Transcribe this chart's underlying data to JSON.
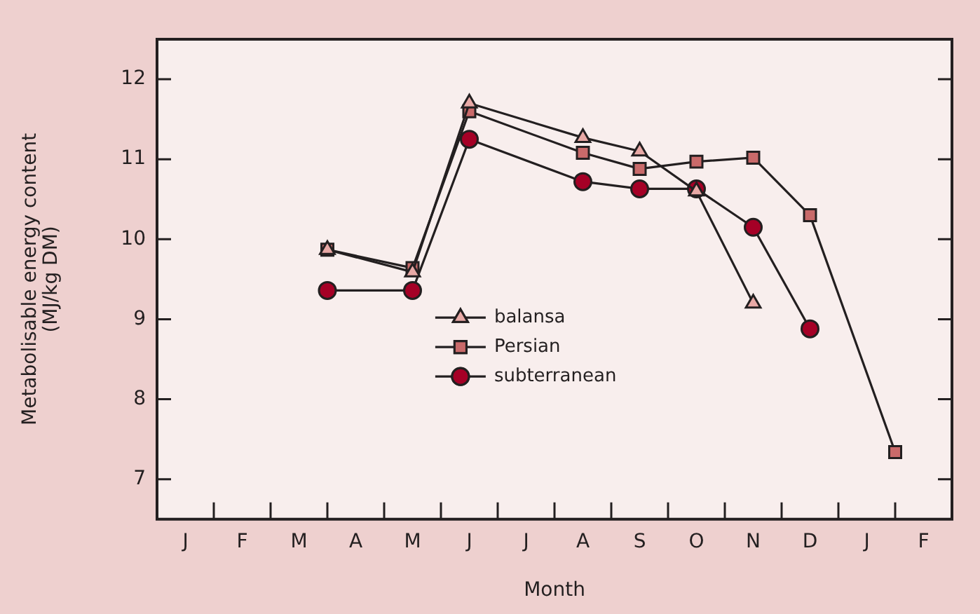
{
  "chart_data": {
    "type": "line",
    "xlabel": "Month",
    "ylabel": "Metabolisable energy content\n(MJ/kg DM)",
    "categories": [
      null,
      "J",
      null,
      "F",
      null,
      "M",
      null,
      "A",
      null,
      "M",
      null,
      "J",
      null,
      "J",
      null,
      "A",
      null,
      "S",
      null,
      "O",
      null,
      "N",
      null,
      "D",
      null,
      "J",
      null,
      "F",
      null
    ],
    "ylim": [
      6.5,
      12.5
    ],
    "yticks": [
      7,
      8,
      9,
      10,
      11,
      12
    ],
    "legend": "center",
    "series": [
      {
        "name": "balansa",
        "color": "#e8a9a6",
        "marker": "triangle",
        "values": [
          null,
          null,
          null,
          null,
          null,
          null,
          9.87,
          null,
          null,
          9.59,
          null,
          11.7,
          null,
          null,
          null,
          11.27,
          null,
          11.1,
          null,
          10.6,
          null,
          9.2,
          null,
          null,
          null,
          null,
          null,
          null,
          null
        ]
      },
      {
        "name": "Persian",
        "color": "#c96a6a",
        "marker": "square",
        "values": [
          null,
          null,
          null,
          null,
          null,
          null,
          9.87,
          null,
          null,
          9.64,
          null,
          11.6,
          null,
          null,
          null,
          11.08,
          null,
          10.88,
          null,
          10.97,
          null,
          11.02,
          null,
          10.3,
          null,
          null,
          7.34,
          null,
          null
        ]
      },
      {
        "name": "subterranean",
        "color": "#a50026",
        "marker": "circle",
        "values": [
          null,
          null,
          null,
          null,
          null,
          null,
          9.36,
          null,
          null,
          9.36,
          null,
          11.25,
          null,
          null,
          null,
          10.72,
          null,
          10.63,
          null,
          10.63,
          null,
          10.15,
          null,
          8.88,
          null,
          null,
          null,
          null,
          null
        ]
      }
    ]
  }
}
